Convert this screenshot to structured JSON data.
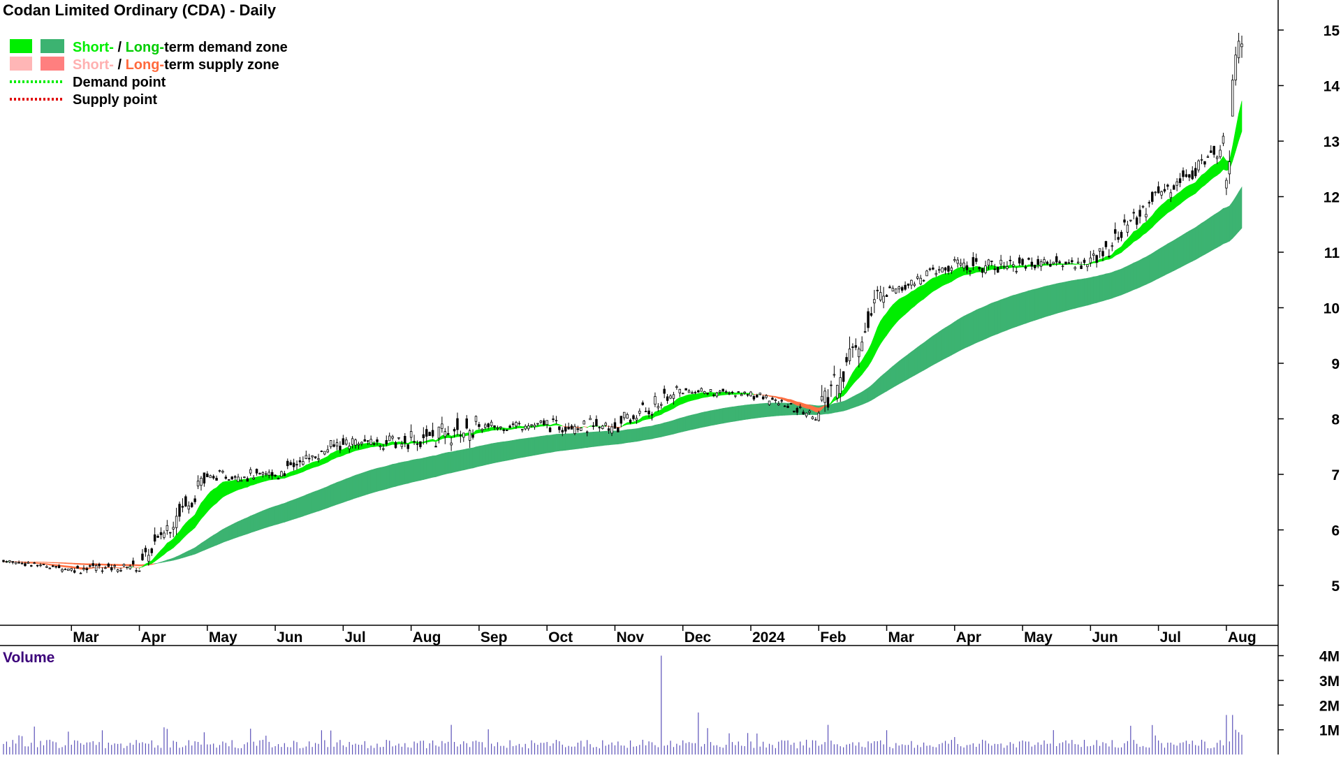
{
  "chart_data": {
    "type": "candlestick",
    "title": "Codan Limited Ordinary (CDA) - Daily",
    "legend": {
      "placement": "top-left",
      "items": [
        {
          "parts": [
            {
              "text": "Short-",
              "color": "#00ee00"
            },
            {
              "text": " / ",
              "color": "#000000"
            },
            {
              "text": "Long-",
              "color": "#00cc00"
            },
            {
              "text": "term demand zone",
              "color": "#000000"
            }
          ],
          "swatches": [
            "#00ee00",
            "#3cb371"
          ]
        },
        {
          "parts": [
            {
              "text": "Short-",
              "color": "#ffb0b0"
            },
            {
              "text": " / ",
              "color": "#000000"
            },
            {
              "text": "Long-",
              "color": "#ff6a3d"
            },
            {
              "text": "term supply zone",
              "color": "#000000"
            }
          ],
          "swatches": [
            "#ffb6b6",
            "#ff7f7f"
          ]
        },
        {
          "parts": [
            {
              "text": "Demand point",
              "color": "#000000"
            }
          ],
          "line_color": "#00ee00"
        },
        {
          "parts": [
            {
              "text": "Supply point",
              "color": "#000000"
            }
          ],
          "line_color": "#e00000"
        }
      ]
    },
    "x_labels": [
      "Mar",
      "Apr",
      "May",
      "Jun",
      "Jul",
      "Aug",
      "Sep",
      "Oct",
      "Nov",
      "Dec",
      "2024",
      "Feb",
      "Mar",
      "Apr",
      "May",
      "Jun",
      "Jul",
      "Aug"
    ],
    "y_ticks": [
      5,
      6,
      7,
      8,
      9,
      10,
      11,
      12,
      13,
      14,
      15
    ],
    "ylim": [
      4.3,
      15.6
    ],
    "volume_title": "Volume",
    "volume_ticks": [
      "1M",
      "2M",
      "3M",
      "4M"
    ],
    "volume_tick_values": [
      1,
      2,
      3,
      4
    ],
    "volume_max": 4.1,
    "colors": {
      "demand_short": "#00ee00",
      "demand_long": "#3cb371",
      "supply_long": "#ff7043",
      "supply_short": "#ffb6b6",
      "candle_up": "#ffffff",
      "candle_down": "#000000",
      "volume_bar": "#5a50b8"
    },
    "monthly_ohlc": [
      {
        "month": "Feb",
        "open": 5.45,
        "high": 5.55,
        "low": 5.15,
        "close": 5.3
      },
      {
        "month": "Mar",
        "open": 5.3,
        "high": 5.75,
        "low": 5.05,
        "close": 5.35
      },
      {
        "month": "Apr",
        "open": 5.35,
        "high": 7.0,
        "low": 5.3,
        "close": 6.95
      },
      {
        "month": "May",
        "open": 6.95,
        "high": 7.65,
        "low": 6.9,
        "close": 7.0
      },
      {
        "month": "Jun",
        "open": 7.0,
        "high": 8.0,
        "low": 6.95,
        "close": 7.55
      },
      {
        "month": "Jul",
        "open": 7.55,
        "high": 8.1,
        "low": 7.1,
        "close": 7.6
      },
      {
        "month": "Aug",
        "open": 7.6,
        "high": 8.4,
        "low": 6.8,
        "close": 7.85
      },
      {
        "month": "Sep",
        "open": 7.85,
        "high": 8.15,
        "low": 7.55,
        "close": 7.9
      },
      {
        "month": "Oct",
        "open": 7.9,
        "high": 8.35,
        "low": 7.4,
        "close": 7.85
      },
      {
        "month": "Nov",
        "open": 7.85,
        "high": 9.1,
        "low": 7.85,
        "close": 8.5
      },
      {
        "month": "Dec",
        "open": 8.5,
        "high": 8.75,
        "low": 8.3,
        "close": 8.45
      },
      {
        "month": "Jan",
        "open": 8.45,
        "high": 8.5,
        "low": 7.9,
        "close": 8.05
      },
      {
        "month": "Feb",
        "open": 8.05,
        "high": 10.45,
        "low": 7.95,
        "close": 10.3
      },
      {
        "month": "Mar",
        "open": 10.3,
        "high": 10.9,
        "low": 10.05,
        "close": 10.75
      },
      {
        "month": "Apr",
        "open": 10.75,
        "high": 11.1,
        "low": 10.0,
        "close": 10.8
      },
      {
        "month": "May",
        "open": 10.8,
        "high": 11.4,
        "low": 10.45,
        "close": 10.8
      },
      {
        "month": "Jun",
        "open": 10.8,
        "high": 12.1,
        "low": 10.65,
        "close": 12.0
      },
      {
        "month": "Jul",
        "open": 12.0,
        "high": 13.15,
        "low": 11.85,
        "close": 12.9
      },
      {
        "month": "Aug",
        "open": 12.4,
        "high": 14.95,
        "low": 11.45,
        "close": 14.8
      }
    ]
  }
}
